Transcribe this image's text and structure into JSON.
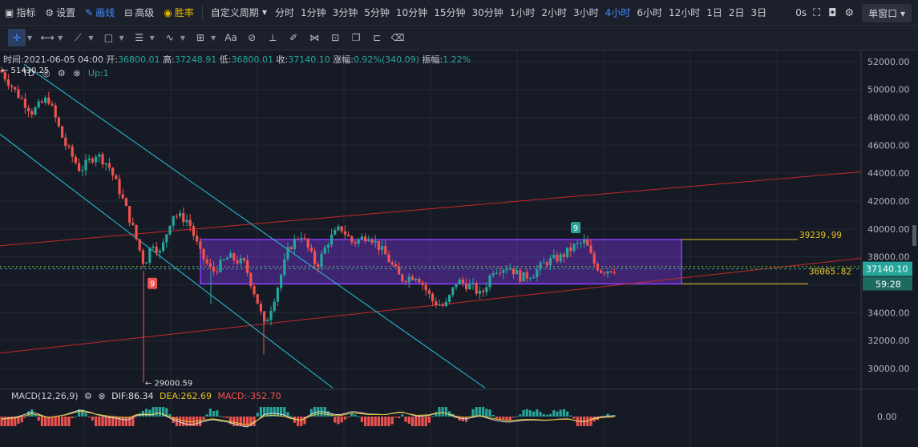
{
  "toolbar": {
    "indicator": "指标",
    "settings": "设置",
    "draw": "画线",
    "advanced": "高级",
    "winrate": "胜率",
    "custom_period": "自定义周期",
    "periods": [
      "分时",
      "1分钟",
      "3分钟",
      "5分钟",
      "10分钟",
      "15分钟",
      "30分钟",
      "1小时",
      "2小时",
      "3小时",
      "4小时",
      "6小时",
      "12小时",
      "1日",
      "2日",
      "3日"
    ],
    "active_period": "4小时",
    "countdown_label": "0s",
    "window_mode": "单窗口"
  },
  "info": {
    "time_label": "时间:",
    "time": "2021-06-05 04:00",
    "open_label": "开:",
    "open": "36800.01",
    "high_label": "高:",
    "high": "37248.91",
    "low_label": "低:",
    "low": "36800.01",
    "close_label": "收:",
    "close": "37140.10",
    "change_label": "涨幅:",
    "change": "0.92%(340.09)",
    "amp_label": "振幅:",
    "amp": "1.22%"
  },
  "indicator_line": {
    "name": "TD",
    "value": "Up:1"
  },
  "macd": {
    "label": "MACD(12,26,9)",
    "dif": "DIF:86.34",
    "dea": "DEA:262.69",
    "macd": "MACD:-352.70",
    "zero_label": "0.00"
  },
  "chart_data": {
    "type": "candlestick",
    "ylim": [
      28500,
      52800
    ],
    "yticks": [
      30000,
      32000,
      34000,
      36000,
      38000,
      40000,
      42000,
      44000,
      46000,
      48000,
      50000,
      52000
    ],
    "ytick_labels": [
      "30000.00",
      "32000.00",
      "34000.00",
      "36000.00",
      "38000.00",
      "40000.00",
      "42000.00",
      "44000.00",
      "46000.00",
      "48000.00",
      "50000.00",
      "52000.00"
    ],
    "annotations": [
      {
        "text": "← 51430.25",
        "price": 51430.25
      },
      {
        "text": "← 29000.59",
        "price": 29000.59
      },
      {
        "text": "39239.99",
        "price": 39239.99
      },
      {
        "text": "36065.82",
        "price": 36065.82
      }
    ],
    "td_markers": [
      {
        "text": "9",
        "price": 36100,
        "color": "#ef5350"
      },
      {
        "text": "9",
        "price": 40100,
        "color": "#26a69a"
      }
    ],
    "current_price": "37140.10",
    "countdown": "59:28",
    "colors": {
      "up": "#26a69a",
      "down": "#ef5350",
      "box": "#8b3dff",
      "channel_red": "#c62828",
      "channel_cyan": "#26c6da",
      "hline": "#e6c229"
    }
  }
}
